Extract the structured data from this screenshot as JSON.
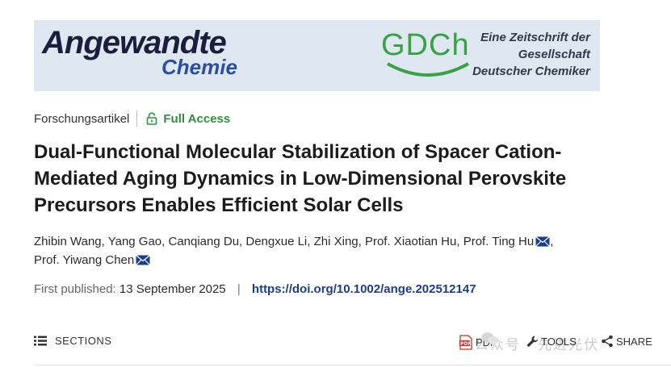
{
  "banner": {
    "journal_name": "Angewandte",
    "journal_sub": "Chemie",
    "society_logo": "GDCh",
    "society_lines": [
      "Eine Zeitschrift der",
      "Gesellschaft",
      "Deutscher Chemiker"
    ]
  },
  "article": {
    "type": "Forschungsartikel",
    "access": "Full Access",
    "title": "Dual-Functional Molecular Stabilization of Spacer Cation-Mediated Aging Dynamics in Low-Dimensional Perovskite Precursors Enables Efficient Solar Cells",
    "authors_line1": "Zhibin Wang, Yang Gao, Canqiang Du, Dengxue Li, Zhi Xing, Prof. Xiaotian Hu, Prof. Ting Hu",
    "authors_line2": "Prof. Yiwang Chen",
    "published_label": "First published:",
    "published_date": "13 September 2025",
    "separator": "|",
    "doi": "https://doi.org/10.1002/ange.202512147"
  },
  "toolbar": {
    "sections": "SECTIONS",
    "pdf": "PDF",
    "tools": "TOOLS",
    "share": "SHARE",
    "watermark": "公众号 · 先进光伏"
  },
  "icons": [
    "lock-icon",
    "envelope-icon",
    "hamburger-icon",
    "pdf-icon",
    "wrench-icon",
    "share-icon"
  ],
  "colors": {
    "banner_bg": "#dfe7f0",
    "access_green": "#2f8f3a",
    "doi_blue": "#1b3e8a",
    "gdch_green": "#3aa14a"
  }
}
